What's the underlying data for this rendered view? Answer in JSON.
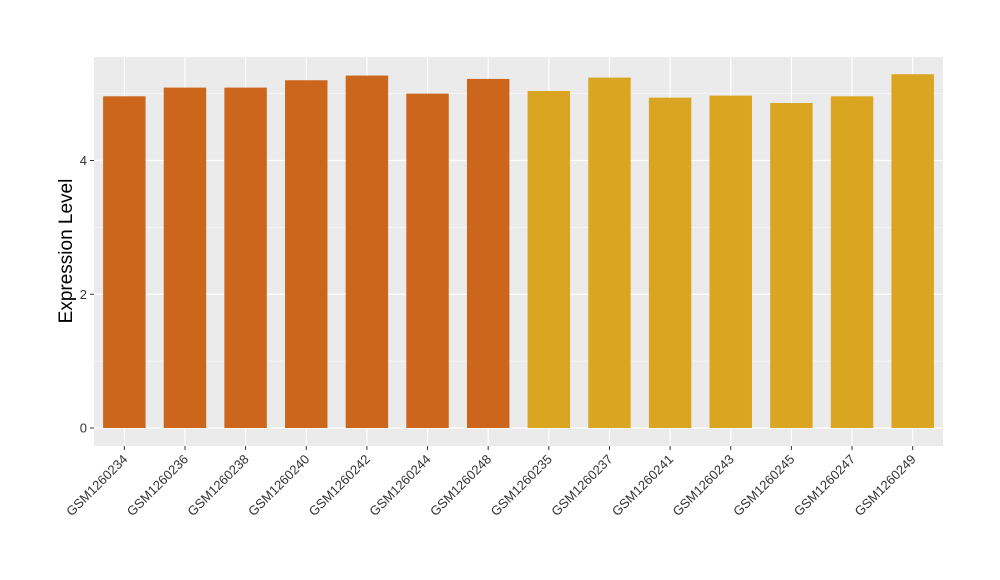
{
  "chart_data": {
    "type": "bar",
    "title": "",
    "xlabel": "",
    "ylabel": "Expression Level",
    "ylim": [
      0,
      5.55
    ],
    "yticks": [
      0,
      2,
      4
    ],
    "grid": true,
    "legend": "none",
    "categories": [
      "GSM1260234",
      "GSM1260236",
      "GSM1260238",
      "GSM1260240",
      "GSM1260242",
      "GSM1260244",
      "GSM1260248",
      "GSM1260235",
      "GSM1260237",
      "GSM1260241",
      "GSM1260243",
      "GSM1260245",
      "GSM1260247",
      "GSM1260249"
    ],
    "values": [
      4.96,
      5.09,
      5.09,
      5.2,
      5.27,
      5.0,
      5.22,
      5.04,
      5.24,
      4.94,
      4.97,
      4.86,
      4.96,
      5.29
    ],
    "groups": [
      0,
      0,
      0,
      0,
      0,
      0,
      0,
      1,
      1,
      1,
      1,
      1,
      1,
      1
    ],
    "colors": {
      "group_colors": [
        "#CD661D",
        "#DAA520"
      ],
      "panel_background": "#EBEBEB",
      "gridline": "#FFFFFF",
      "tick_text": "#333333"
    }
  }
}
